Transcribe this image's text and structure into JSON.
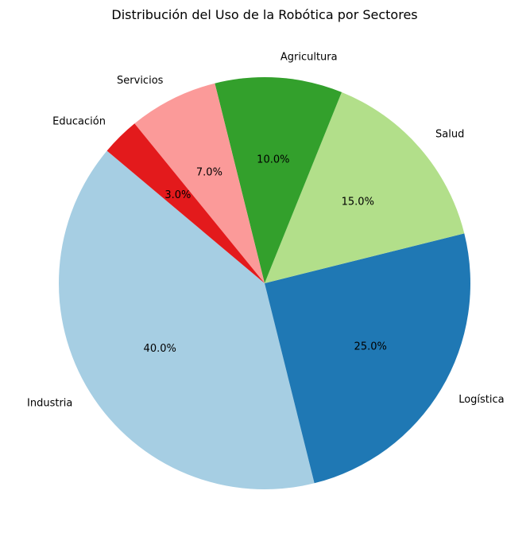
{
  "chart_data": {
    "type": "pie",
    "title": "Distribución del Uso de la Robótica por Sectores",
    "categories": [
      "Industria",
      "Logística",
      "Salud",
      "Agricultura",
      "Servicios",
      "Educación"
    ],
    "values": [
      40,
      25,
      15,
      10,
      7,
      3
    ],
    "pct_labels": [
      "40.0%",
      "25.0%",
      "15.0%",
      "10.0%",
      "7.0%",
      "3.0%"
    ],
    "colors": [
      "#a6cee3",
      "#1f78b4",
      "#b2df8a",
      "#33a02c",
      "#fb9a99",
      "#e31a1c"
    ],
    "start_angle_deg": 140,
    "direction": "counterclockwise"
  }
}
